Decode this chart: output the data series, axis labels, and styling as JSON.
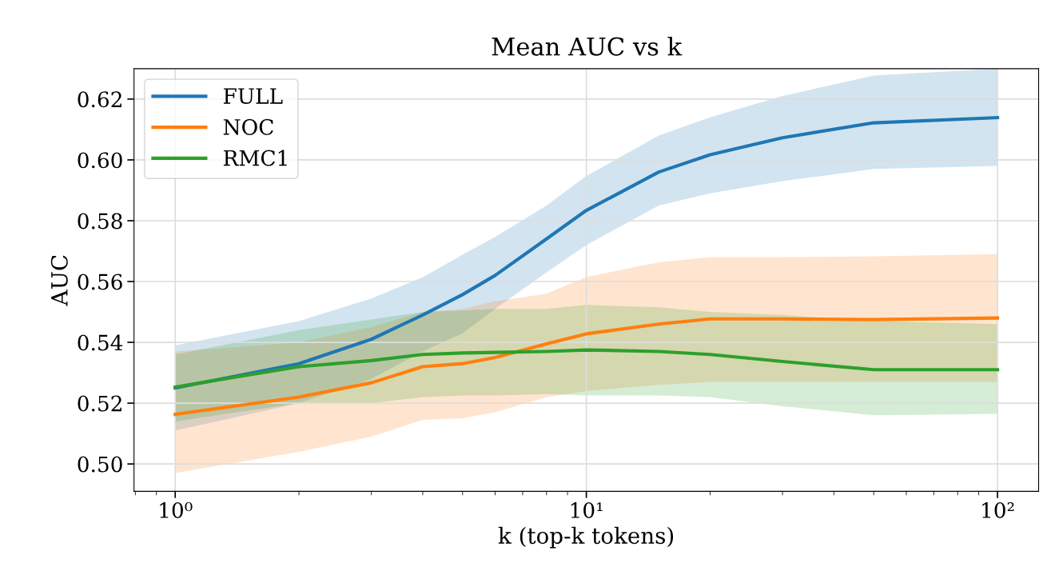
{
  "chart_data": {
    "type": "line",
    "title": "Mean AUC vs k",
    "xlabel": "k (top-k tokens)",
    "ylabel": "AUC",
    "log": "x",
    "grid": true,
    "legend": "top left",
    "x": [
      1,
      2,
      3,
      4,
      5,
      6,
      8,
      10,
      15,
      20,
      30,
      50,
      100
    ],
    "xlim": [
      0.794,
      125.9
    ],
    "xticks": [
      {
        "value": 1,
        "label": "10⁰"
      },
      {
        "value": 10,
        "label": "10¹"
      },
      {
        "value": 100,
        "label": "10²"
      }
    ],
    "ylim": [
      0.491,
      0.63
    ],
    "yticks": [
      {
        "value": 0.5,
        "label": "0.50"
      },
      {
        "value": 0.52,
        "label": "0.52"
      },
      {
        "value": 0.54,
        "label": "0.54"
      },
      {
        "value": 0.56,
        "label": "0.56"
      },
      {
        "value": 0.58,
        "label": "0.58"
      },
      {
        "value": 0.6,
        "label": "0.60"
      },
      {
        "value": 0.62,
        "label": "0.62"
      }
    ],
    "series": [
      {
        "name": "FULL",
        "color": "#1f77b4",
        "values": [
          0.525,
          0.533,
          0.541,
          0.549,
          0.5557,
          0.562,
          0.574,
          0.5834,
          0.596,
          0.6017,
          0.6073,
          0.6122,
          0.6139
        ],
        "lower": [
          0.511,
          0.52,
          0.528,
          0.537,
          0.543,
          0.551,
          0.563,
          0.572,
          0.585,
          0.589,
          0.593,
          0.597,
          0.598
        ],
        "upper": [
          0.539,
          0.547,
          0.5544,
          0.5614,
          0.5688,
          0.5747,
          0.585,
          0.5947,
          0.608,
          0.614,
          0.621,
          0.6277,
          0.63
        ]
      },
      {
        "name": "NOC",
        "color": "#ff7f0e",
        "values": [
          0.5163,
          0.522,
          0.5267,
          0.532,
          0.533,
          0.535,
          0.5395,
          0.5428,
          0.546,
          0.5477,
          0.5477,
          0.5475,
          0.548
        ],
        "lower": [
          0.497,
          0.504,
          0.509,
          0.5145,
          0.515,
          0.517,
          0.522,
          0.524,
          0.526,
          0.527,
          0.527,
          0.527,
          0.527
        ],
        "upper": [
          0.537,
          0.54,
          0.545,
          0.55,
          0.551,
          0.5535,
          0.556,
          0.5615,
          0.5663,
          0.568,
          0.568,
          0.5683,
          0.569
        ]
      },
      {
        "name": "RMC1",
        "color": "#2ca02c",
        "values": [
          0.5253,
          0.532,
          0.534,
          0.536,
          0.5365,
          0.5367,
          0.537,
          0.5375,
          0.537,
          0.536,
          0.5337,
          0.531,
          0.531
        ],
        "lower": [
          0.514,
          0.52,
          0.52,
          0.522,
          0.5225,
          0.5225,
          0.523,
          0.5225,
          0.5225,
          0.522,
          0.519,
          0.516,
          0.5165
        ],
        "upper": [
          0.536,
          0.544,
          0.5475,
          0.55,
          0.5505,
          0.551,
          0.551,
          0.5523,
          0.5515,
          0.55,
          0.549,
          0.547,
          0.546
        ]
      }
    ]
  }
}
